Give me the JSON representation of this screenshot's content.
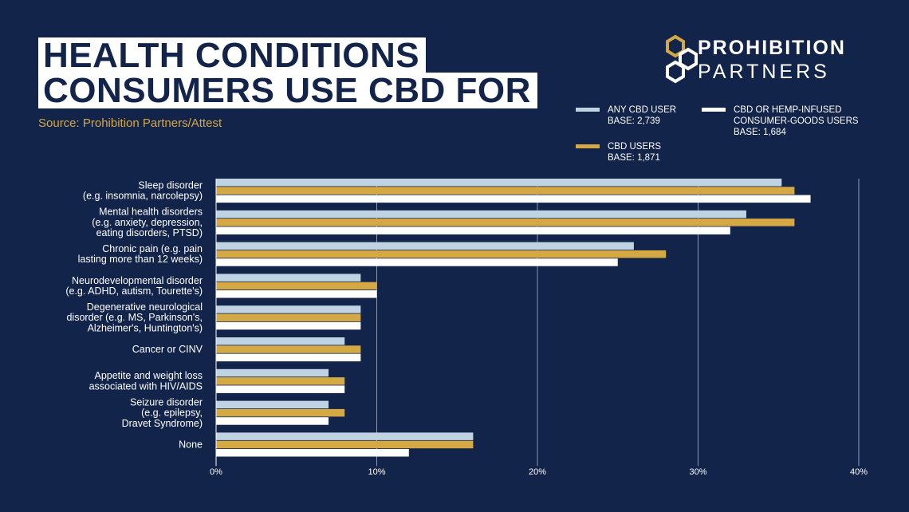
{
  "title_lines": [
    "HEALTH CONDITIONS",
    "CONSUMERS USE CBD FOR"
  ],
  "source": "Source: Prohibition Partners/Attest",
  "logo": {
    "line1": "PROHIBITION",
    "line2": "PARTNERS"
  },
  "colors": {
    "background": "#13244a",
    "any_cbd": "#bfd3e3",
    "cbd_users": "#d4a843",
    "hemp_infused": "#ffffff",
    "gold": "#d4a843"
  },
  "legend": [
    {
      "line1": "ANY CBD USER",
      "line2": "BASE: 2,739",
      "color": "#bfd3e3"
    },
    {
      "line1": "CBD USERS",
      "line2": "BASE: 1,871",
      "color": "#d4a843"
    },
    {
      "line1": "CBD OR HEMP-INFUSED",
      "line2": "CONSUMER-GOODS USERS",
      "line3": "BASE: 1,684",
      "color": "#ffffff"
    }
  ],
  "chart_data": {
    "type": "bar",
    "orientation": "horizontal",
    "categories": [
      [
        "Sleep disorder",
        "(e.g. insomnia, narcolepsy)"
      ],
      [
        "Mental health disorders",
        "(e.g. anxiety, depression,",
        "eating disorders, PTSD)"
      ],
      [
        "Chronic pain (e.g. pain",
        "lasting more than 12 weeks)"
      ],
      [
        "Neurodevelopmental disorder",
        "(e.g. ADHD, autism, Tourette's)"
      ],
      [
        "Degenerative neurological",
        "disorder (e.g. MS, Parkinson's,",
        "Alzheimer's, Huntington's)"
      ],
      [
        "Cancer or CINV"
      ],
      [
        "Appetite and weight loss",
        "associated with HIV/AIDS"
      ],
      [
        "Seizure disorder",
        "(e.g. epilepsy,",
        "Dravet Syndrome)"
      ],
      [
        "None"
      ]
    ],
    "series": [
      {
        "name": "ANY CBD USER",
        "values": [
          35.2,
          33,
          26,
          9,
          9,
          8,
          7,
          7,
          16
        ]
      },
      {
        "name": "CBD USERS",
        "values": [
          36,
          36,
          28,
          10,
          9,
          9,
          8,
          8,
          16
        ]
      },
      {
        "name": "CBD OR HEMP-INFUSED CONSUMER-GOODS USERS",
        "values": [
          37,
          32,
          25,
          10,
          9,
          9,
          8,
          7,
          12
        ]
      }
    ],
    "xlim": [
      0,
      40
    ],
    "ticks": [
      0,
      10,
      20,
      30,
      40
    ],
    "tick_labels": [
      "0%",
      "10%",
      "20%",
      "30%",
      "40%"
    ],
    "grid": true
  }
}
